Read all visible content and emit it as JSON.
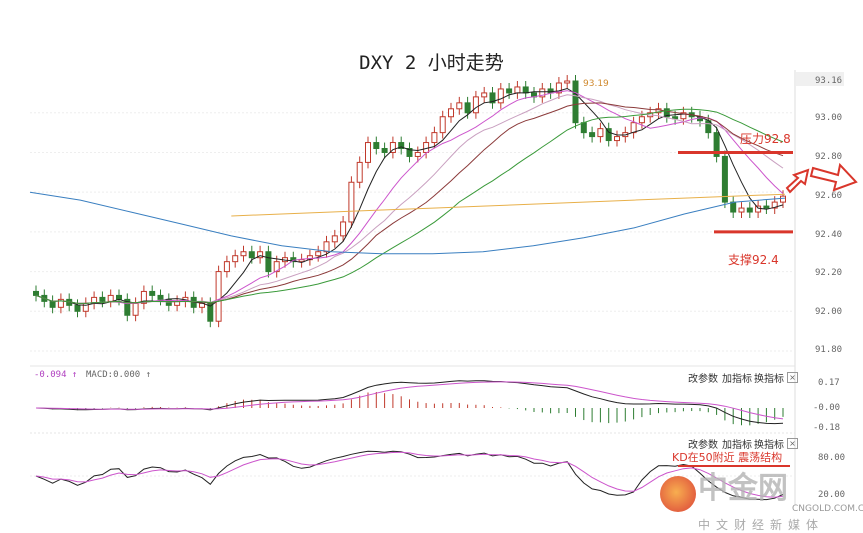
{
  "title": "DXY 2 小时走势",
  "chart_data": [
    {
      "type": "candlestick",
      "name": "price",
      "closes": [
        92.08,
        92.05,
        92.02,
        92.06,
        92.03,
        92.0,
        92.04,
        92.07,
        92.05,
        92.08,
        92.06,
        91.98,
        92.04,
        92.1,
        92.08,
        92.06,
        92.03,
        92.05,
        92.07,
        92.02,
        92.04,
        91.95,
        92.2,
        92.25,
        92.28,
        92.3,
        92.27,
        92.3,
        92.2,
        92.25,
        92.27,
        92.25,
        92.26,
        92.28,
        92.3,
        92.35,
        92.38,
        92.45,
        92.65,
        92.75,
        92.85,
        92.82,
        92.8,
        92.85,
        92.82,
        92.78,
        92.8,
        92.85,
        92.9,
        92.98,
        93.02,
        93.05,
        93.0,
        93.08,
        93.1,
        93.05,
        93.12,
        93.1,
        93.13,
        93.1,
        93.08,
        93.12,
        93.1,
        93.15,
        93.16,
        92.95,
        92.9,
        92.88,
        92.92,
        92.86,
        92.88,
        92.9,
        92.95,
        92.98,
        93.0,
        93.02,
        92.98,
        92.97,
        93.0,
        92.98,
        92.96,
        92.9,
        92.78,
        92.55,
        92.5,
        92.52,
        92.5,
        92.53,
        92.52,
        92.55,
        92.58
      ],
      "long_ma_blue": [
        92.6,
        92.56,
        92.5,
        92.44,
        92.38,
        92.33,
        92.3,
        92.29,
        92.29,
        92.3,
        92.33,
        92.37,
        92.42,
        92.49,
        92.55,
        92.57
      ],
      "long_ma_orange": [
        null,
        null,
        null,
        null,
        92.48,
        92.49,
        92.5,
        92.51,
        92.52,
        92.53,
        92.54,
        92.55,
        92.56,
        92.57,
        92.58,
        92.59
      ],
      "yaxis_ticks": [
        "93.16",
        "93.00",
        "92.80",
        "92.60",
        "92.40",
        "92.20",
        "92.00",
        "91.80"
      ],
      "ylim": [
        91.8,
        93.16
      ],
      "peak_label": "93.19",
      "annotations": {
        "resistance_label": "压力92.8",
        "resistance": 92.8,
        "support_label": "支撑92.4",
        "support": 92.4
      }
    },
    {
      "type": "line",
      "name": "MACD",
      "header_value": "-0.094 ↑",
      "header_label": "MACD:0.000 ↑",
      "yaxis_ticks": [
        "0.17",
        "-0.00",
        "-0.18"
      ]
    },
    {
      "type": "line",
      "name": "KD",
      "yaxis_ticks": [
        "80.00",
        "20.00"
      ],
      "annotation": "KD在50附近  震荡结构"
    }
  ],
  "panel_buttons": {
    "params": "改参数",
    "add": "加指标",
    "switch": "换指标",
    "close": "×"
  },
  "colors": {
    "up": "#c0392b",
    "down": "#2e7d32",
    "red_mark": "#d9362b",
    "ma_black": "#222",
    "ma_pink": "#cc55cc",
    "ma_light": "#c9a0c0",
    "ma_brown": "#8b3a3a",
    "ma_green": "#3a9a3a",
    "ma_blue": "#3a7fc0",
    "ma_orange": "#e8b04a"
  },
  "watermark": {
    "brand": "中金网",
    "site": "CNGOLD.COM.CN",
    "slogan": "中文财经新媒体"
  }
}
